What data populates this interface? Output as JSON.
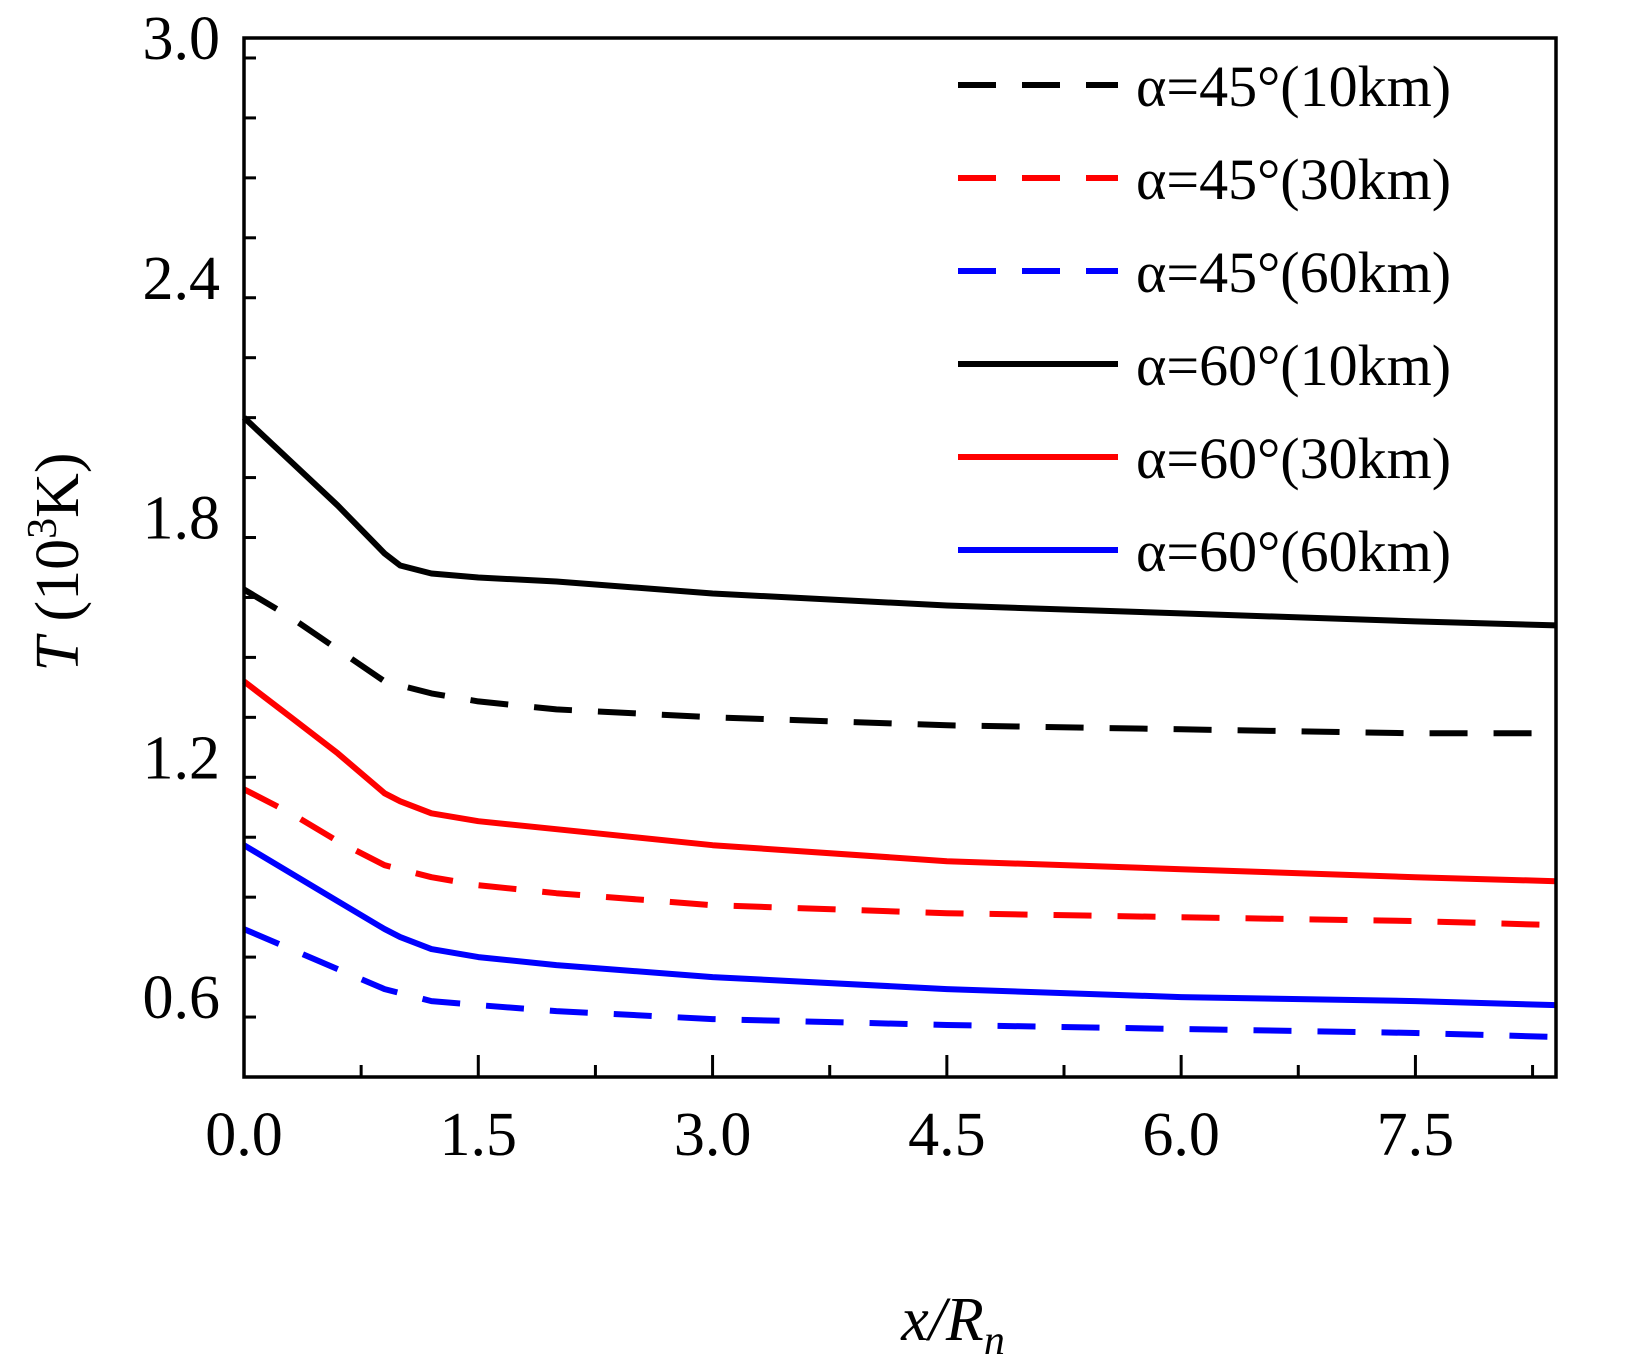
{
  "chart_data": {
    "type": "line",
    "title": "",
    "xlabel": {
      "main": "x/R",
      "sub": "n"
    },
    "ylabel": {
      "prefix": "T",
      "unit_start": " (10",
      "sup": "3",
      "unit_end": "K)"
    },
    "xlim": [
      0,
      8.4
    ],
    "ylim": [
      0.4,
      3.0
    ],
    "xticks": [
      "0.0",
      "1.5",
      "3.0",
      "4.5",
      "6.0",
      "7.5"
    ],
    "xtick_values": [
      0,
      1.5,
      3.0,
      4.5,
      6.0,
      7.5
    ],
    "yticks": [
      "0.6",
      "1.2",
      "1.8",
      "2.4",
      "3.0"
    ],
    "ytick_values": [
      0.6,
      1.2,
      1.8,
      2.4,
      3.0
    ],
    "legend_position": "top-right",
    "series": [
      {
        "name": "α=45°(10km)",
        "color": "#000000",
        "style": "dashed",
        "x": [
          0,
          0.3,
          0.6,
          0.9,
          1.2,
          1.5,
          2.0,
          3.0,
          4.5,
          6.0,
          7.5,
          8.4
        ],
        "y": [
          1.62,
          1.55,
          1.47,
          1.39,
          1.36,
          1.34,
          1.32,
          1.3,
          1.28,
          1.27,
          1.26,
          1.26
        ]
      },
      {
        "name": "α=45°(30km)",
        "color": "#ff0000",
        "style": "dashed",
        "x": [
          0,
          0.3,
          0.6,
          0.9,
          1.2,
          1.5,
          2.0,
          3.0,
          4.5,
          6.0,
          7.5,
          8.4
        ],
        "y": [
          1.12,
          1.06,
          0.99,
          0.93,
          0.9,
          0.88,
          0.86,
          0.83,
          0.81,
          0.8,
          0.79,
          0.78
        ]
      },
      {
        "name": "α=45°(60km)",
        "color": "#0000ff",
        "style": "dashed",
        "x": [
          0,
          0.3,
          0.6,
          0.9,
          1.2,
          1.5,
          2.0,
          3.0,
          4.5,
          6.0,
          7.5,
          8.4
        ],
        "y": [
          0.77,
          0.72,
          0.67,
          0.62,
          0.59,
          0.58,
          0.565,
          0.545,
          0.53,
          0.52,
          0.51,
          0.5
        ]
      },
      {
        "name": "α=60°(10km)",
        "color": "#000000",
        "style": "solid",
        "x": [
          0,
          0.3,
          0.6,
          0.9,
          1.0,
          1.2,
          1.5,
          2.0,
          3.0,
          4.5,
          6.0,
          7.5,
          8.4
        ],
        "y": [
          2.05,
          1.94,
          1.83,
          1.71,
          1.68,
          1.66,
          1.65,
          1.64,
          1.61,
          1.58,
          1.56,
          1.54,
          1.53
        ]
      },
      {
        "name": "α=60°(30km)",
        "color": "#ff0000",
        "style": "solid",
        "x": [
          0,
          0.3,
          0.6,
          0.9,
          1.0,
          1.2,
          1.5,
          2.0,
          3.0,
          4.5,
          6.0,
          7.5,
          8.4
        ],
        "y": [
          1.39,
          1.3,
          1.21,
          1.11,
          1.09,
          1.06,
          1.04,
          1.02,
          0.98,
          0.94,
          0.92,
          0.9,
          0.89
        ]
      },
      {
        "name": "α=60°(60km)",
        "color": "#0000ff",
        "style": "solid",
        "x": [
          0,
          0.3,
          0.6,
          0.9,
          1.0,
          1.2,
          1.5,
          2.0,
          3.0,
          4.5,
          6.0,
          7.5,
          8.4
        ],
        "y": [
          0.98,
          0.91,
          0.84,
          0.77,
          0.75,
          0.72,
          0.7,
          0.68,
          0.65,
          0.62,
          0.6,
          0.59,
          0.58
        ]
      }
    ]
  }
}
